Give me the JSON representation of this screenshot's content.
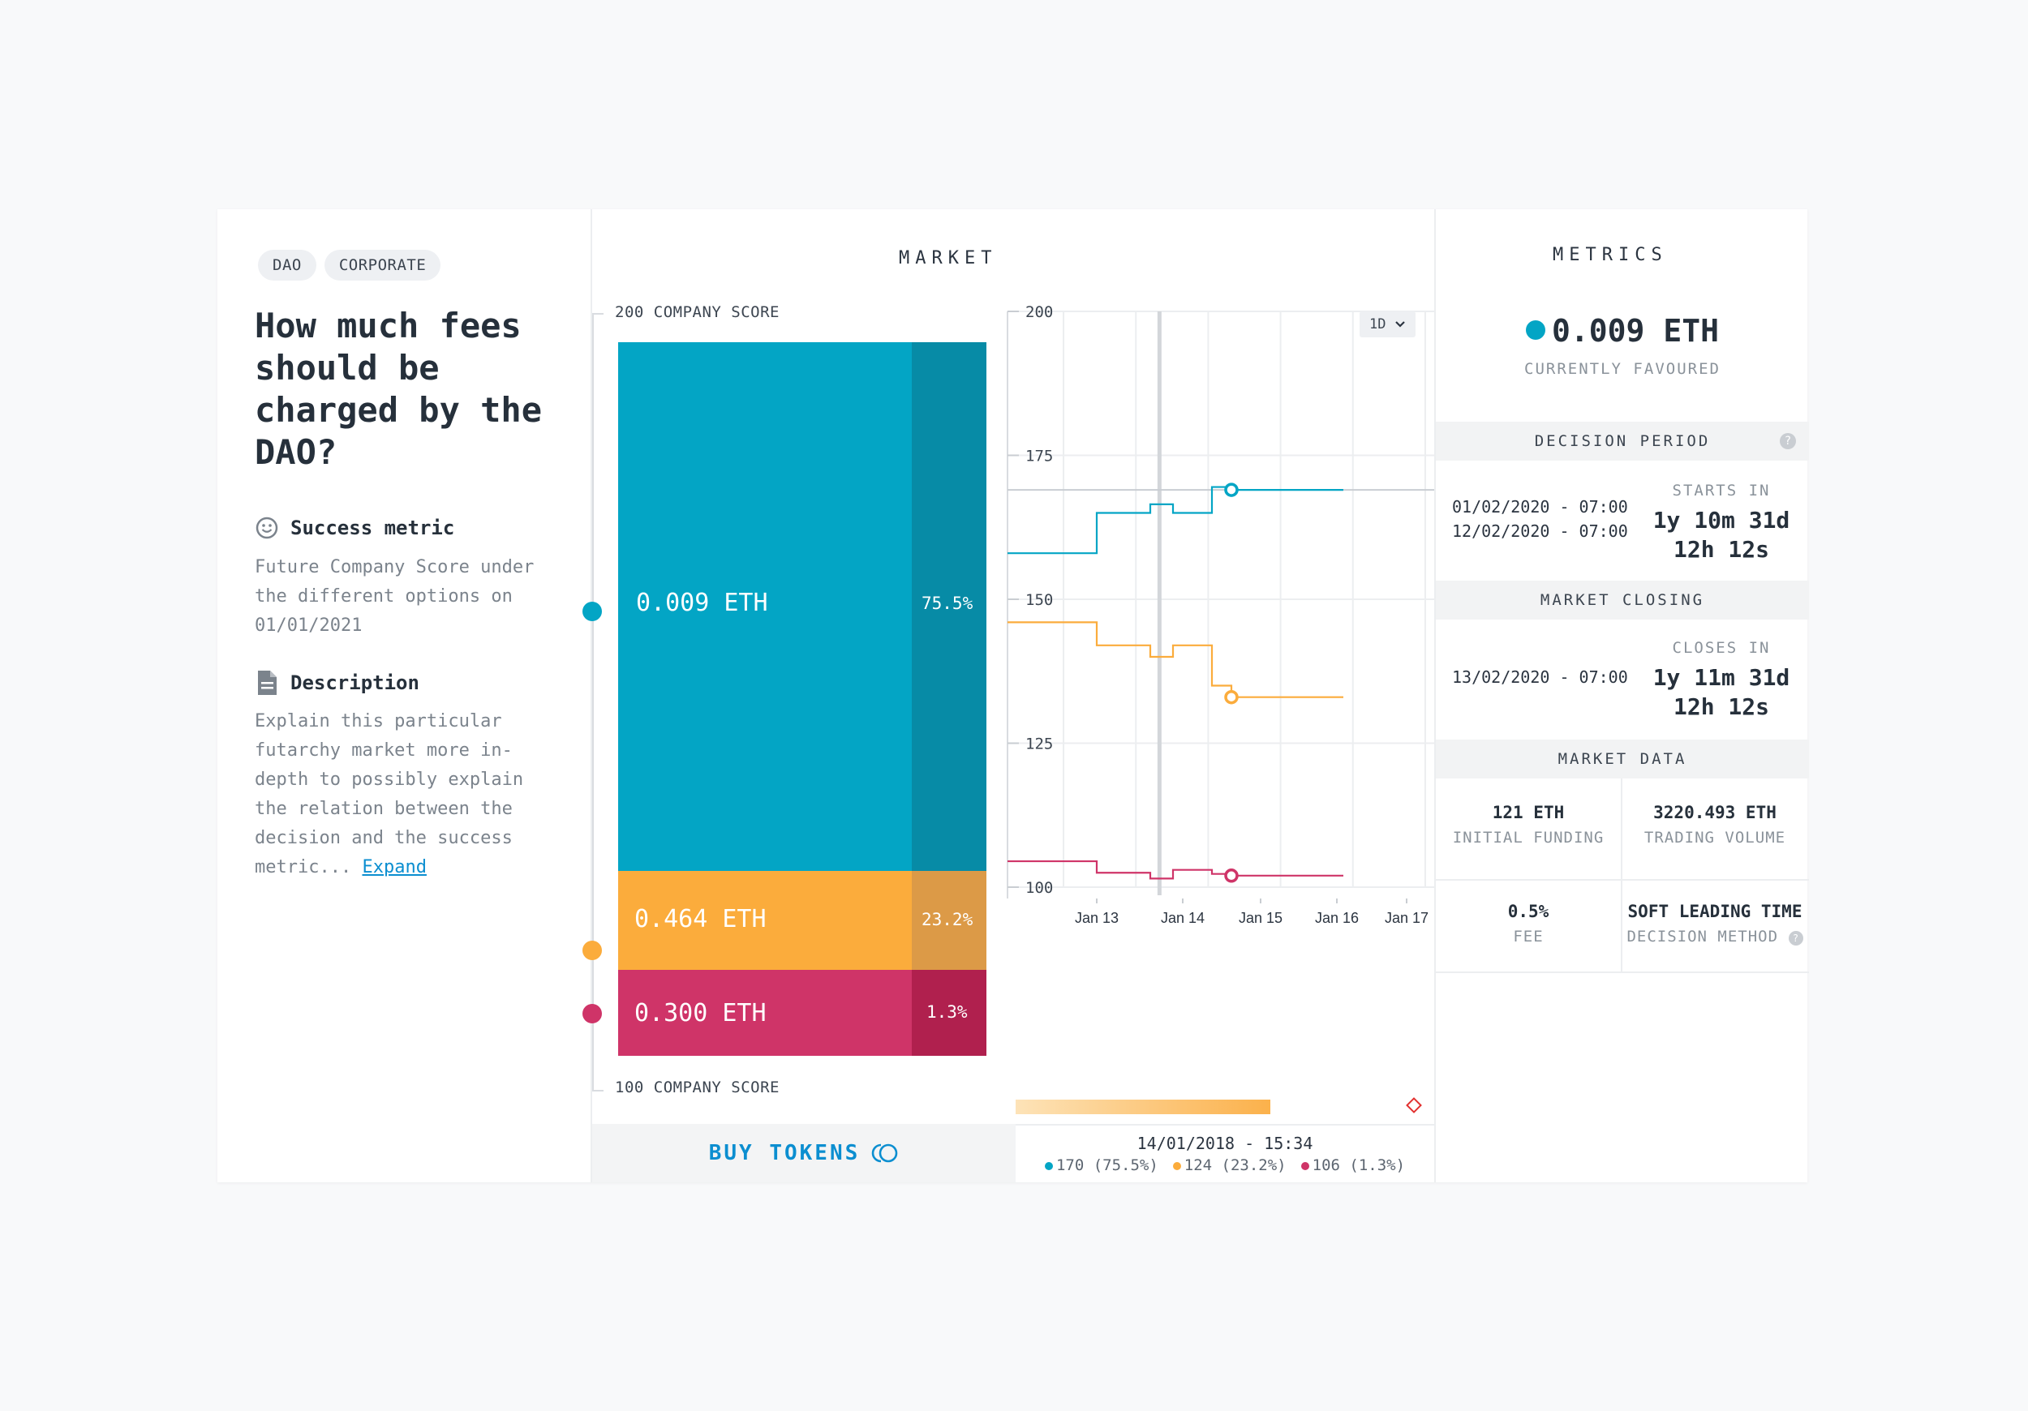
{
  "tags": [
    "DAO",
    "CORPORATE"
  ],
  "question": "How much fees should be charged by the DAO?",
  "success_metric": {
    "title": "Success metric",
    "text": "Future Company Score under the different options on 01/01/2021"
  },
  "description": {
    "title": "Description",
    "text": "Explain this particular futarchy market more in-depth to possibly explain the relation between the decision and the success metric...",
    "expand_label": "Expand"
  },
  "market": {
    "title": "MARKET",
    "top_label": "200 COMPANY SCORE",
    "bottom_label": "100 COMPANY SCORE",
    "outcomes": [
      {
        "value": "0.009 ETH",
        "pct": "75.5%",
        "color": "#03a5c5",
        "dark": "#078ba6"
      },
      {
        "value": "0.464 ETH",
        "pct": "23.2%",
        "color": "#fbac3c",
        "dark": "#dc9a47"
      },
      {
        "value": "0.300 ETH",
        "pct": "1.3%",
        "color": "#cf3468",
        "dark": "#b0204e"
      }
    ],
    "buy_label": "BUY TOKENS",
    "range_button": "1D"
  },
  "chart_data": {
    "type": "line",
    "ylim": [
      100,
      200
    ],
    "y_ticks": [
      200,
      175,
      150,
      125,
      100
    ],
    "x_ticks": [
      "Jan 13",
      "Jan 14",
      "Jan 15",
      "Jan 16",
      "Jan 17"
    ],
    "cursor_label": "14/01/2018 - 15:34",
    "series": [
      {
        "name": "0.009 ETH",
        "color": "#03a5c5",
        "x": [
          12.0,
          12.55,
          13.2,
          13.4,
          13.55,
          13.8,
          14.55,
          15.0
        ],
        "y": [
          158,
          165,
          166.5,
          165,
          169.5,
          169,
          169,
          169
        ]
      },
      {
        "name": "0.464 ETH",
        "color": "#fbac3c",
        "x": [
          12.0,
          12.55,
          13.2,
          13.4,
          13.55,
          13.8,
          14.55,
          15.0
        ],
        "y": [
          146,
          142,
          140,
          142,
          135,
          133,
          133,
          133
        ]
      },
      {
        "name": "0.300 ETH",
        "color": "#cf3468",
        "x": [
          12.0,
          12.55,
          13.2,
          13.4,
          13.55,
          13.8,
          14.55,
          15.0
        ],
        "y": [
          104.5,
          102.5,
          101.5,
          103,
          102.3,
          102,
          102,
          102
        ]
      }
    ],
    "legend": [
      {
        "label": "170 (75.5%)",
        "color": "#03a5c5"
      },
      {
        "label": "124 (23.2%)",
        "color": "#fbac3c"
      },
      {
        "label": "106 (1.3%)",
        "color": "#cf3468"
      }
    ]
  },
  "metrics": {
    "title": "METRICS",
    "favoured_value": "0.009 ETH",
    "favoured_label": "CURRENTLY FAVOURED",
    "decision_period": {
      "title": "DECISION PERIOD",
      "start": "01/02/2020 - 07:00",
      "end": "12/02/2020 - 07:00",
      "countdown_label": "STARTS IN",
      "countdown_line1": "1y 10m 31d",
      "countdown_line2": "12h 12s"
    },
    "market_closing": {
      "title": "MARKET CLOSING",
      "date": "13/02/2020 - 07:00",
      "countdown_label": "CLOSES IN",
      "countdown_line1": "1y 11m 31d",
      "countdown_line2": "12h 12s"
    },
    "market_data": {
      "title": "MARKET DATA",
      "initial_funding_value": "121 ETH",
      "initial_funding_label": "INITIAL FUNDING",
      "trading_volume_value": "3220.493 ETH",
      "trading_volume_label": "TRADING VOLUME",
      "fee_value": "0.5%",
      "fee_label": "FEE",
      "decision_method_value": "SOFT LEADING TIME",
      "decision_method_label": "DECISION METHOD"
    }
  }
}
